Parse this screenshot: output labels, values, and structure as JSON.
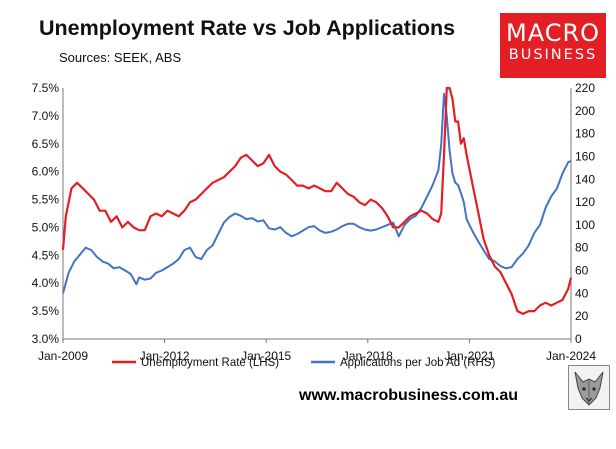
{
  "header": {
    "title": "Unemployment Rate vs Job Applications",
    "subtitle": "Sources: SEEK, ABS"
  },
  "logo": {
    "line1": "MACRO",
    "line2": "BUSINESS",
    "color": "#e31e24"
  },
  "footer": {
    "url": "www.macrobusiness.com.au",
    "mascot": "wolf-icon"
  },
  "chart_data": {
    "type": "line",
    "x_tick_labels": [
      "Jan-2009",
      "Jan-2012",
      "Jan-2015",
      "Jan-2018",
      "Jan-2021",
      "Jan-2024"
    ],
    "xlim": [
      "2009-01",
      "2024-01"
    ],
    "y_left": {
      "ticks": [
        "3.0%",
        "3.5%",
        "4.0%",
        "4.5%",
        "5.0%",
        "5.5%",
        "6.0%",
        "6.5%",
        "7.0%",
        "7.5%"
      ],
      "lim": [
        3.0,
        7.5
      ]
    },
    "y_right": {
      "ticks": [
        "0",
        "20",
        "40",
        "60",
        "80",
        "100",
        "120",
        "140",
        "160",
        "180",
        "200",
        "220"
      ],
      "lim": [
        0,
        220
      ]
    },
    "grid": false,
    "legend_position": "bottom",
    "series": [
      {
        "name": "Unemployment Rate (LHS)",
        "axis": "left",
        "color": "#e31e24",
        "x": [
          "2009-01",
          "2009-02",
          "2009-04",
          "2009-06",
          "2009-08",
          "2009-10",
          "2009-12",
          "2010-02",
          "2010-04",
          "2010-06",
          "2010-08",
          "2010-10",
          "2010-12",
          "2011-02",
          "2011-04",
          "2011-06",
          "2011-08",
          "2011-10",
          "2011-12",
          "2012-02",
          "2012-04",
          "2012-06",
          "2012-08",
          "2012-10",
          "2012-12",
          "2013-02",
          "2013-04",
          "2013-06",
          "2013-08",
          "2013-10",
          "2013-12",
          "2014-02",
          "2014-04",
          "2014-06",
          "2014-08",
          "2014-10",
          "2014-12",
          "2015-02",
          "2015-04",
          "2015-06",
          "2015-08",
          "2015-10",
          "2015-12",
          "2016-02",
          "2016-04",
          "2016-06",
          "2016-08",
          "2016-10",
          "2016-12",
          "2017-02",
          "2017-04",
          "2017-06",
          "2017-08",
          "2017-10",
          "2017-12",
          "2018-02",
          "2018-04",
          "2018-06",
          "2018-08",
          "2018-10",
          "2018-12",
          "2019-02",
          "2019-04",
          "2019-06",
          "2019-08",
          "2019-10",
          "2019-12",
          "2020-02",
          "2020-03",
          "2020-04",
          "2020-05",
          "2020-06",
          "2020-07",
          "2020-08",
          "2020-09",
          "2020-10",
          "2020-11",
          "2020-12",
          "2021-02",
          "2021-04",
          "2021-06",
          "2021-08",
          "2021-10",
          "2021-12",
          "2022-02",
          "2022-04",
          "2022-06",
          "2022-08",
          "2022-10",
          "2022-12",
          "2023-02",
          "2023-04",
          "2023-06",
          "2023-08",
          "2023-10",
          "2023-12",
          "2024-01"
        ],
        "values": [
          4.6,
          5.2,
          5.7,
          5.8,
          5.7,
          5.6,
          5.5,
          5.3,
          5.3,
          5.1,
          5.2,
          5.0,
          5.1,
          5.0,
          4.95,
          4.95,
          5.2,
          5.25,
          5.2,
          5.3,
          5.25,
          5.2,
          5.3,
          5.45,
          5.5,
          5.6,
          5.7,
          5.8,
          5.85,
          5.9,
          6.0,
          6.1,
          6.25,
          6.3,
          6.2,
          6.1,
          6.15,
          6.3,
          6.1,
          6.0,
          5.95,
          5.85,
          5.75,
          5.75,
          5.7,
          5.75,
          5.7,
          5.65,
          5.65,
          5.8,
          5.7,
          5.6,
          5.55,
          5.45,
          5.4,
          5.5,
          5.45,
          5.35,
          5.2,
          5.0,
          5.0,
          5.1,
          5.2,
          5.25,
          5.3,
          5.25,
          5.15,
          5.1,
          5.25,
          6.3,
          7.5,
          7.5,
          7.3,
          6.9,
          6.9,
          6.5,
          6.6,
          6.3,
          5.8,
          5.3,
          4.8,
          4.5,
          4.3,
          4.2,
          4.0,
          3.8,
          3.5,
          3.45,
          3.5,
          3.5,
          3.6,
          3.65,
          3.6,
          3.65,
          3.7,
          3.9,
          4.1
        ]
      },
      {
        "name": "Applications per Job Ad (RHS)",
        "axis": "right",
        "color": "#4472c4",
        "x": [
          "2009-01",
          "2009-03",
          "2009-05",
          "2009-07",
          "2009-09",
          "2009-11",
          "2010-01",
          "2010-03",
          "2010-05",
          "2010-07",
          "2010-09",
          "2010-11",
          "2011-01",
          "2011-03",
          "2011-04",
          "2011-06",
          "2011-08",
          "2011-10",
          "2011-12",
          "2012-02",
          "2012-04",
          "2012-06",
          "2012-08",
          "2012-10",
          "2012-12",
          "2013-02",
          "2013-04",
          "2013-06",
          "2013-08",
          "2013-10",
          "2013-12",
          "2014-02",
          "2014-04",
          "2014-06",
          "2014-08",
          "2014-10",
          "2014-12",
          "2015-02",
          "2015-04",
          "2015-06",
          "2015-08",
          "2015-10",
          "2015-12",
          "2016-02",
          "2016-04",
          "2016-06",
          "2016-08",
          "2016-10",
          "2016-12",
          "2017-02",
          "2017-04",
          "2017-06",
          "2017-08",
          "2017-10",
          "2017-12",
          "2018-02",
          "2018-04",
          "2018-06",
          "2018-08",
          "2018-10",
          "2018-12",
          "2019-02",
          "2019-04",
          "2019-06",
          "2019-08",
          "2019-10",
          "2019-12",
          "2020-02",
          "2020-03",
          "2020-04",
          "2020-05",
          "2020-06",
          "2020-07",
          "2020-08",
          "2020-09",
          "2020-10",
          "2020-11",
          "2020-12",
          "2021-02",
          "2021-04",
          "2021-06",
          "2021-08",
          "2021-10",
          "2021-12",
          "2022-02",
          "2022-04",
          "2022-06",
          "2022-08",
          "2022-10",
          "2022-12",
          "2023-02",
          "2023-04",
          "2023-06",
          "2023-08",
          "2023-10",
          "2023-12",
          "2024-01"
        ],
        "values": [
          40,
          58,
          68,
          74,
          80,
          78,
          72,
          68,
          66,
          62,
          63,
          60,
          57,
          48,
          54,
          52,
          53,
          58,
          60,
          63,
          66,
          70,
          78,
          80,
          72,
          70,
          78,
          82,
          92,
          102,
          107,
          110,
          108,
          105,
          106,
          103,
          104,
          97,
          96,
          98,
          93,
          90,
          92,
          95,
          98,
          99,
          95,
          93,
          94,
          96,
          99,
          101,
          101,
          98,
          96,
          95,
          96,
          98,
          100,
          102,
          90,
          100,
          105,
          108,
          115,
          125,
          135,
          148,
          170,
          215,
          195,
          165,
          145,
          137,
          135,
          128,
          120,
          105,
          95,
          86,
          78,
          70,
          68,
          64,
          62,
          63,
          70,
          75,
          82,
          93,
          100,
          115,
          125,
          132,
          145,
          155,
          156
        ]
      }
    ]
  }
}
